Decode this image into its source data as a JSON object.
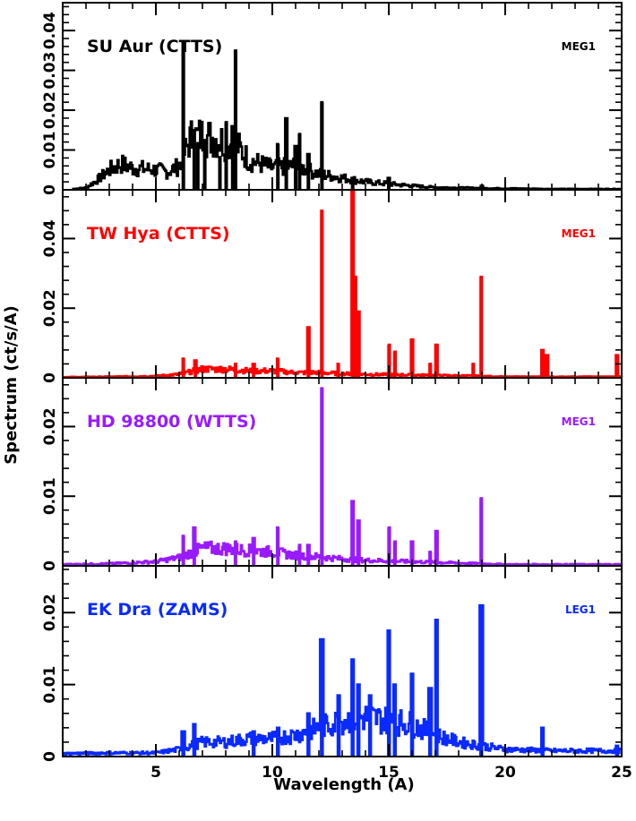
{
  "chart_data": {
    "type": "line",
    "xlabel": "Wavelength (A)",
    "ylabel": "Spectrum (ct/s/A)",
    "xlim": [
      1,
      25
    ],
    "x_ticks": [
      5,
      10,
      15,
      20,
      25
    ],
    "panels": [
      {
        "title": "SU Aur (CTTS)",
        "instrument": "MEG1",
        "color": "#000000",
        "ylim": [
          0,
          0.047
        ],
        "y_ticks": [
          0,
          0.01,
          0.02,
          0.03,
          0.04
        ],
        "y_tick_labels": [
          "0",
          "0.01",
          "0.02",
          "0.03",
          "0.04"
        ],
        "continuum": [
          [
            1.4,
            0.0002
          ],
          [
            2,
            0.0005
          ],
          [
            2.5,
            0.0025
          ],
          [
            3,
            0.005
          ],
          [
            3.5,
            0.0065
          ],
          [
            4,
            0.0055
          ],
          [
            5,
            0.005
          ],
          [
            5.5,
            0.0045
          ],
          [
            6,
            0.006
          ],
          [
            6.5,
            0.013
          ],
          [
            7,
            0.0135
          ],
          [
            7.5,
            0.013
          ],
          [
            8,
            0.012
          ],
          [
            8.5,
            0.011
          ],
          [
            9,
            0.0075
          ],
          [
            9.5,
            0.0065
          ],
          [
            10,
            0.0055
          ],
          [
            11,
            0.006
          ],
          [
            12,
            0.004
          ],
          [
            13,
            0.003
          ],
          [
            14,
            0.002
          ],
          [
            15,
            0.0015
          ],
          [
            16,
            0.001
          ],
          [
            17,
            0.0006
          ],
          [
            19,
            0.0004
          ],
          [
            22,
            0.0002
          ],
          [
            25,
            0.0002
          ]
        ],
        "lines": [
          [
            6.18,
            0.037
          ],
          [
            6.65,
            0.015
          ],
          [
            6.8,
            0.012
          ],
          [
            7.1,
            0.0125
          ],
          [
            7.75,
            0.0085
          ],
          [
            8.02,
            0.017
          ],
          [
            8.3,
            0.016
          ],
          [
            8.42,
            0.035
          ],
          [
            10.24,
            0.0115
          ],
          [
            10.6,
            0.018
          ],
          [
            11.0,
            0.011
          ],
          [
            11.17,
            0.014
          ],
          [
            11.55,
            0.009
          ],
          [
            12.13,
            0.022
          ],
          [
            13.45,
            0.003
          ],
          [
            15.0,
            0.003
          ],
          [
            19.0,
            0.001
          ]
        ]
      },
      {
        "title": "TW Hya (CTTS)",
        "instrument": "MEG1",
        "color": "#ff0000",
        "ylim": [
          0,
          0.054
        ],
        "y_ticks": [
          0,
          0.02,
          0.04
        ],
        "y_tick_labels": [
          "0",
          "0.02",
          "0.04"
        ],
        "continuum": [
          [
            1,
            0.0002
          ],
          [
            3,
            0.0003
          ],
          [
            5,
            0.0005
          ],
          [
            6,
            0.001
          ],
          [
            7,
            0.0025
          ],
          [
            8,
            0.0025
          ],
          [
            9,
            0.002
          ],
          [
            10,
            0.002
          ],
          [
            11,
            0.0015
          ],
          [
            12,
            0.0015
          ],
          [
            13,
            0.0012
          ],
          [
            14,
            0.001
          ],
          [
            16,
            0.0008
          ],
          [
            18,
            0.0006
          ],
          [
            20,
            0.0003
          ],
          [
            25,
            0.0003
          ]
        ],
        "lines": [
          [
            6.18,
            0.0055
          ],
          [
            6.7,
            0.005
          ],
          [
            8.42,
            0.004
          ],
          [
            9.2,
            0.004
          ],
          [
            10.24,
            0.0055
          ],
          [
            11.55,
            0.0145
          ],
          [
            12.13,
            0.048
          ],
          [
            12.83,
            0.004
          ],
          [
            13.45,
            0.055
          ],
          [
            13.55,
            0.029
          ],
          [
            13.7,
            0.019
          ],
          [
            15.01,
            0.0095
          ],
          [
            15.26,
            0.0075
          ],
          [
            16.0,
            0.011
          ],
          [
            16.78,
            0.004
          ],
          [
            17.05,
            0.0095
          ],
          [
            18.63,
            0.004
          ],
          [
            18.97,
            0.029
          ],
          [
            21.6,
            0.008
          ],
          [
            21.8,
            0.0065
          ],
          [
            24.8,
            0.0065
          ]
        ]
      },
      {
        "title": "HD 98800 (WTTS)",
        "instrument": "MEG1",
        "color": "#9a1aff",
        "ylim": [
          0,
          0.027
        ],
        "y_ticks": [
          0,
          0.01,
          0.02
        ],
        "y_tick_labels": [
          "0",
          "0.01",
          "0.02"
        ],
        "continuum": [
          [
            1,
            0.0002
          ],
          [
            3,
            0.0003
          ],
          [
            5,
            0.0006
          ],
          [
            6,
            0.0012
          ],
          [
            7,
            0.0025
          ],
          [
            8,
            0.0025
          ],
          [
            9,
            0.0022
          ],
          [
            10,
            0.002
          ],
          [
            11,
            0.0015
          ],
          [
            12,
            0.0013
          ],
          [
            13,
            0.001
          ],
          [
            14,
            0.0008
          ],
          [
            16,
            0.0006
          ],
          [
            18,
            0.0004
          ],
          [
            20,
            0.0002
          ],
          [
            25,
            0.0002
          ]
        ],
        "lines": [
          [
            6.18,
            0.0043
          ],
          [
            6.65,
            0.0055
          ],
          [
            8.42,
            0.0035
          ],
          [
            9.2,
            0.004
          ],
          [
            10.24,
            0.0055
          ],
          [
            11.17,
            0.003
          ],
          [
            11.55,
            0.003
          ],
          [
            12.13,
            0.0255
          ],
          [
            13.45,
            0.0093
          ],
          [
            13.7,
            0.0065
          ],
          [
            15.01,
            0.0055
          ],
          [
            15.26,
            0.0035
          ],
          [
            16.0,
            0.0035
          ],
          [
            16.78,
            0.002
          ],
          [
            17.05,
            0.005
          ],
          [
            18.97,
            0.0097
          ]
        ]
      },
      {
        "title": "EK Dra (ZAMS)",
        "instrument": "LEG1",
        "color": "#0a2aff",
        "ylim": [
          0,
          0.0265
        ],
        "y_ticks": [
          0,
          0.01,
          0.02
        ],
        "y_tick_labels": [
          "0",
          "0.01",
          "0.02"
        ],
        "continuum": [
          [
            1,
            0.0004
          ],
          [
            3,
            0.0005
          ],
          [
            5,
            0.0005
          ],
          [
            6,
            0.001
          ],
          [
            7,
            0.002
          ],
          [
            8,
            0.002
          ],
          [
            9,
            0.0025
          ],
          [
            10,
            0.0025
          ],
          [
            11,
            0.003
          ],
          [
            12,
            0.004
          ],
          [
            12.5,
            0.0045
          ],
          [
            13,
            0.005
          ],
          [
            14,
            0.0055
          ],
          [
            15,
            0.005
          ],
          [
            16,
            0.0045
          ],
          [
            17,
            0.003
          ],
          [
            18,
            0.002
          ],
          [
            19,
            0.0015
          ],
          [
            20,
            0.001
          ],
          [
            22,
            0.0008
          ],
          [
            25,
            0.0008
          ]
        ],
        "lines": [
          [
            6.18,
            0.0035
          ],
          [
            6.65,
            0.0045
          ],
          [
            9.2,
            0.0035
          ],
          [
            10.24,
            0.004
          ],
          [
            11.55,
            0.006
          ],
          [
            12.13,
            0.0163
          ],
          [
            12.85,
            0.0085
          ],
          [
            13.45,
            0.0135
          ],
          [
            13.7,
            0.01
          ],
          [
            14.2,
            0.0085
          ],
          [
            15.01,
            0.0175
          ],
          [
            15.26,
            0.01
          ],
          [
            16.0,
            0.0115
          ],
          [
            16.78,
            0.0095
          ],
          [
            17.05,
            0.019
          ],
          [
            18.97,
            0.021
          ],
          [
            21.6,
            0.004
          ],
          [
            24.8,
            0.0015
          ]
        ]
      }
    ]
  }
}
